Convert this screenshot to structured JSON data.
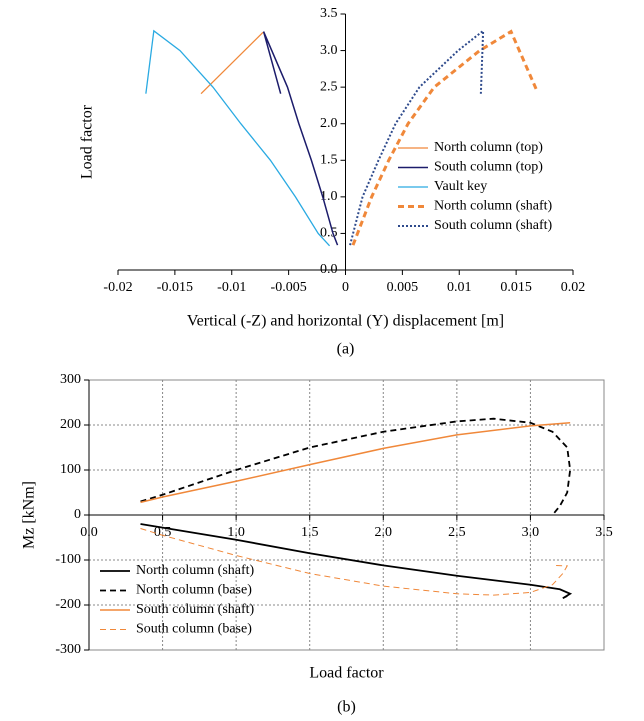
{
  "chart_data": [
    {
      "type": "line",
      "xlabel": "Vertical  (-Z)  and horizontal (Y) displacement [m]",
      "ylabel": "Load factor",
      "caption": "(a)",
      "xlim": [
        -0.02,
        0.02
      ],
      "xticks": [
        -0.02,
        -0.015,
        -0.01,
        -0.005,
        0,
        0.005,
        0.01,
        0.015,
        0.02
      ],
      "ylim": [
        0,
        3.5
      ],
      "yticks": [
        {
          "value": 0,
          "label": "0.0"
        },
        0.5,
        {
          "value": 1,
          "label": "1.0"
        },
        1.5,
        {
          "value": 2,
          "label": "2.0"
        },
        2.5,
        {
          "value": 3,
          "label": "3.0"
        },
        3.5
      ],
      "grid": false,
      "legend": "right",
      "series": [
        {
          "name": "North column (top)",
          "color": "#f0883a",
          "line_style": "solid",
          "line_width": 1.3,
          "x": [
            -0.0127,
            -0.00725
          ],
          "values": [
            2.41,
            3.25
          ]
        },
        {
          "name": "South column (top)",
          "color": "#1c1c6b",
          "line_style": "solid",
          "line_width": 1.5,
          "x": [
            -0.0057,
            -0.0072,
            -0.0051,
            -0.0041,
            -0.003,
            -0.002,
            -0.0011,
            -0.0007
          ],
          "values": [
            2.41,
            3.26,
            2.5,
            2.0,
            1.5,
            1.0,
            0.5,
            0.34
          ]
        },
        {
          "name": "Vault key",
          "color": "#2aaae2",
          "line_style": "solid",
          "line_width": 1.3,
          "x": [
            -0.01755,
            -0.01685,
            -0.01455,
            -0.01165,
            -0.0092,
            -0.0066,
            -0.0044,
            -0.0024,
            -0.0014
          ],
          "values": [
            2.41,
            3.27,
            3.0,
            2.5,
            2.0,
            1.5,
            1.0,
            0.5,
            0.33
          ]
        },
        {
          "name": "North column (shaft)",
          "color": "#f0883a",
          "line_style": "dashed",
          "line_width": 3,
          "x": [
            0.00066,
            0.0023,
            0.0038,
            0.0055,
            0.0078,
            0.0118,
            0.01455,
            0.0168
          ],
          "values": [
            0.34,
            1.0,
            1.5,
            2.0,
            2.5,
            3.0,
            3.26,
            2.46
          ]
        },
        {
          "name": "South column (shaft)",
          "color": "#2e4a8c",
          "line_style": "dotted",
          "line_width": 2,
          "x": [
            0.0004,
            0.0015,
            0.0029,
            0.0044,
            0.0065,
            0.0099,
            0.0121,
            0.0119
          ],
          "values": [
            0.34,
            1.0,
            1.5,
            2.0,
            2.5,
            3.0,
            3.27,
            2.41
          ]
        }
      ]
    },
    {
      "type": "line",
      "xlabel": "Load factor",
      "ylabel": "Mz [kNm]",
      "caption": "(b)",
      "xlim": [
        0,
        3.5
      ],
      "xticks": [
        {
          "value": 0,
          "label": "0.0"
        },
        0.5,
        {
          "value": 1,
          "label": "1.0"
        },
        1.5,
        {
          "value": 2,
          "label": "2.0"
        },
        2.5,
        {
          "value": 3,
          "label": "3.0"
        },
        3.5
      ],
      "ylim": [
        -300,
        300
      ],
      "yticks": [
        -300,
        -200,
        -100,
        0,
        100,
        200,
        300
      ],
      "grid": true,
      "legend": "lower left",
      "series": [
        {
          "name": "North column (shaft)",
          "color": "#000000",
          "line_style": "solid",
          "line_width": 1.8,
          "x": [
            0.35,
            0.5,
            1.0,
            1.5,
            2.0,
            2.5,
            3.0,
            3.2,
            3.27,
            3.22,
            3.25
          ],
          "values": [
            -20,
            -28,
            -55,
            -85,
            -112,
            -135,
            -155,
            -165,
            -175,
            -185,
            -180
          ]
        },
        {
          "name": "North column (base)",
          "color": "#000000",
          "line_style": "dashed",
          "line_width": 1.8,
          "x": [
            0.35,
            0.5,
            1.0,
            1.5,
            2.0,
            2.5,
            2.75,
            3.0,
            3.15,
            3.25,
            3.27,
            3.25,
            3.2,
            3.15
          ],
          "values": [
            30,
            45,
            100,
            150,
            185,
            208,
            214,
            205,
            185,
            150,
            100,
            50,
            20,
            0
          ]
        },
        {
          "name": "South column (shaft)",
          "color": "#f0883a",
          "line_style": "solid",
          "line_width": 1.5,
          "x": [
            0.35,
            0.5,
            1.0,
            1.5,
            2.0,
            2.5,
            3.0,
            3.27
          ],
          "values": [
            28,
            40,
            75,
            112,
            148,
            178,
            198,
            205
          ]
        },
        {
          "name": "South column (base)",
          "color": "#f0883a",
          "line_style": "dashed",
          "line_width": 1,
          "x": [
            0.35,
            0.5,
            1.0,
            1.5,
            2.0,
            2.5,
            2.75,
            3.0,
            3.15,
            3.22,
            3.25,
            3.15
          ],
          "values": [
            -30,
            -45,
            -90,
            -130,
            -158,
            -175,
            -178,
            -172,
            -155,
            -130,
            -113,
            -112
          ]
        }
      ]
    }
  ]
}
